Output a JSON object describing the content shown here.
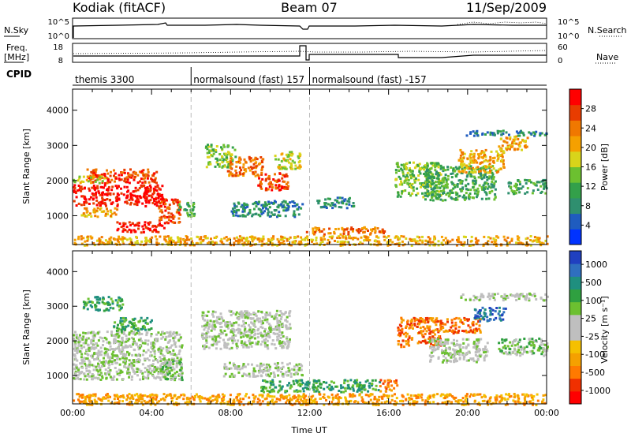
{
  "header": {
    "radar": "Kodiak (fitACF)",
    "beam": "Beam 07",
    "date": "11/Sep/2009"
  },
  "strip": {
    "nsky_label": "N.Sky",
    "nsearch_label": "N.Search",
    "noise_tick_top": "10^5",
    "noise_tick_bottom": "10^0",
    "freq_label_1": "Freq.",
    "freq_label_2": "[MHz]",
    "freq_tick_top": "18",
    "freq_tick_bottom": "8",
    "nave_label": "Nave",
    "nave_tick_top": "60",
    "nave_tick_bottom": "0",
    "cpid_label": "CPID"
  },
  "cpid_segments": [
    {
      "label": "themis 3300",
      "start_h": 0,
      "end_h": 6
    },
    {
      "label": "normalsound (fast) 157",
      "start_h": 6,
      "end_h": 12
    },
    {
      "label": "normalsound (fast) -157",
      "start_h": 12,
      "end_h": 24
    }
  ],
  "chart_data": [
    {
      "type": "heatmap",
      "panel": "power",
      "ylabel": "Slant Range [km]",
      "xlabel": "",
      "ylim": [
        180,
        4600
      ],
      "xlim_hours": [
        0,
        24
      ],
      "y_ticks": [
        1000,
        2000,
        3000,
        4000
      ],
      "colorbar_label": "Power [dB]",
      "colorbar_ticks": [
        "4",
        "8",
        "12",
        "16",
        "20",
        "24",
        "28"
      ],
      "colors": [
        "#0033ff",
        "#1f5cbf",
        "#2f8f6f",
        "#33a04a",
        "#6cc030",
        "#d9d41a",
        "#f5a000",
        "#f07800",
        "#e83c00",
        "#ff0000"
      ],
      "regions": [
        {
          "t0": 0.0,
          "t1": 4.6,
          "r0": 1300,
          "r1": 1900,
          "level": 9
        },
        {
          "t0": 0.7,
          "t1": 4.3,
          "r0": 1950,
          "r1": 2350,
          "level": 8
        },
        {
          "t0": 0.0,
          "t1": 1.6,
          "r0": 1950,
          "r1": 2150,
          "level": 5
        },
        {
          "t0": 0.3,
          "t1": 2.2,
          "r0": 1000,
          "r1": 1250,
          "level": 6
        },
        {
          "t0": 2.2,
          "t1": 4.6,
          "r0": 550,
          "r1": 850,
          "level": 9
        },
        {
          "t0": 4.3,
          "t1": 5.4,
          "r0": 800,
          "r1": 1500,
          "level": 8
        },
        {
          "t0": 5.3,
          "t1": 6.2,
          "r0": 1000,
          "r1": 1400,
          "level": 3
        },
        {
          "t0": 6.7,
          "t1": 8.2,
          "r0": 2400,
          "r1": 3050,
          "level": 4
        },
        {
          "t0": 7.8,
          "t1": 9.6,
          "r0": 2150,
          "r1": 2700,
          "level": 7
        },
        {
          "t0": 9.3,
          "t1": 10.9,
          "r0": 1750,
          "r1": 2250,
          "level": 8
        },
        {
          "t0": 10.2,
          "t1": 11.5,
          "r0": 2350,
          "r1": 2850,
          "level": 5
        },
        {
          "t0": 8.0,
          "t1": 11.6,
          "r0": 1000,
          "r1": 1450,
          "level": 2
        },
        {
          "t0": 11.8,
          "t1": 15.8,
          "r0": 500,
          "r1": 700,
          "level": 7
        },
        {
          "t0": 12.3,
          "t1": 14.2,
          "r0": 1250,
          "r1": 1550,
          "level": 2
        },
        {
          "t0": 16.3,
          "t1": 18.6,
          "r0": 1550,
          "r1": 2550,
          "level": 4
        },
        {
          "t0": 17.8,
          "t1": 21.4,
          "r0": 1450,
          "r1": 2450,
          "level": 3
        },
        {
          "t0": 19.5,
          "t1": 21.8,
          "r0": 2250,
          "r1": 2900,
          "level": 6
        },
        {
          "t0": 21.5,
          "t1": 23.0,
          "r0": 2900,
          "r1": 3300,
          "level": 6
        },
        {
          "t0": 22.0,
          "t1": 24.0,
          "r0": 1650,
          "r1": 2050,
          "level": 3
        },
        {
          "t0": 19.8,
          "t1": 24.0,
          "r0": 3300,
          "r1": 3450,
          "level": 2
        },
        {
          "t0": 0.0,
          "t1": 24.0,
          "r0": 180,
          "r1": 450,
          "level": 6
        }
      ]
    },
    {
      "type": "heatmap",
      "panel": "velocity",
      "ylabel": "Slant Range [km]",
      "xlabel": "Time UT",
      "ylim": [
        180,
        4600
      ],
      "xlim_hours": [
        0,
        24
      ],
      "y_ticks": [
        1000,
        2000,
        3000,
        4000
      ],
      "x_ticks": [
        "00:00",
        "04:00",
        "08:00",
        "12:00",
        "16:00",
        "20:00",
        "00:00"
      ],
      "colorbar_label": "Velocity [m s⁻¹]",
      "colorbar_ticks": [
        "1000",
        "500",
        "100",
        "25",
        "-25",
        "-100",
        "-500",
        "-1000"
      ],
      "colors": [
        "#ff0000",
        "#f03000",
        "#ff7a00",
        "#f5a000",
        "#f5c000",
        "#bfbfbf",
        "#bfbfbf",
        "#6cc030",
        "#2fa040",
        "#1f8f7f",
        "#2f6fbf",
        "#2040c0"
      ],
      "regions": [
        {
          "t0": 0.0,
          "t1": 5.5,
          "r0": 900,
          "r1": 2300,
          "level": 6
        },
        {
          "t0": 0.5,
          "t1": 2.5,
          "r0": 2900,
          "r1": 3300,
          "level": 8
        },
        {
          "t0": 2.0,
          "t1": 4.0,
          "r0": 2300,
          "r1": 2700,
          "level": 8
        },
        {
          "t0": 4.4,
          "t1": 5.5,
          "r0": 900,
          "r1": 1500,
          "level": 7
        },
        {
          "t0": 6.5,
          "t1": 11.0,
          "r0": 1800,
          "r1": 2900,
          "level": 6
        },
        {
          "t0": 7.6,
          "t1": 11.6,
          "r0": 1000,
          "r1": 1400,
          "level": 6
        },
        {
          "t0": 9.5,
          "t1": 15.5,
          "r0": 550,
          "r1": 900,
          "level": 8
        },
        {
          "t0": 15.5,
          "t1": 16.4,
          "r0": 550,
          "r1": 900,
          "level": 2
        },
        {
          "t0": 16.4,
          "t1": 18.6,
          "r0": 1850,
          "r1": 2700,
          "level": 2
        },
        {
          "t0": 18.6,
          "t1": 20.6,
          "r0": 2250,
          "r1": 2700,
          "level": 2
        },
        {
          "t0": 20.3,
          "t1": 21.9,
          "r0": 2600,
          "r1": 3000,
          "level": 10
        },
        {
          "t0": 18.0,
          "t1": 21.0,
          "r0": 1400,
          "r1": 2100,
          "level": 6
        },
        {
          "t0": 21.5,
          "t1": 24.0,
          "r0": 1600,
          "r1": 2100,
          "level": 7
        },
        {
          "t0": 19.5,
          "t1": 24.0,
          "r0": 3200,
          "r1": 3400,
          "level": 6
        },
        {
          "t0": 0.0,
          "t1": 24.0,
          "r0": 180,
          "r1": 500,
          "level": 3
        }
      ]
    }
  ]
}
